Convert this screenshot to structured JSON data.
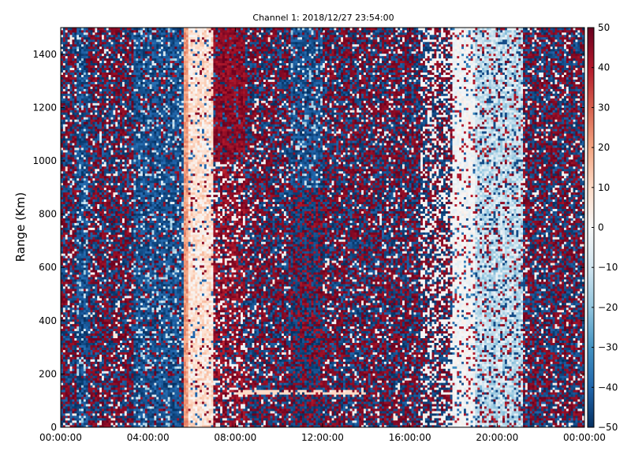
{
  "chart_data": {
    "type": "heatmap",
    "title": "Channel 1: 2018/12/27 23:54:00",
    "xlabel": "",
    "ylabel": "Range (Km)",
    "x_range": [
      "00:00:00",
      "24:00:00"
    ],
    "x_ticks": [
      "00:00:00",
      "04:00:00",
      "08:00:00",
      "12:00:00",
      "16:00:00",
      "20:00:00",
      "00:00:00"
    ],
    "ylim": [
      0,
      1500
    ],
    "y_ticks": [
      "0",
      "200",
      "400",
      "600",
      "800",
      "1000",
      "1200",
      "1400"
    ],
    "colorbar": {
      "range": [
        -50,
        50
      ],
      "ticks": [
        "50",
        "40",
        "30",
        "20",
        "10",
        "0",
        "−10",
        "−20",
        "−30",
        "−40",
        "−50"
      ],
      "colormap": "RdBu_r",
      "stops": [
        "#053061",
        "#2166ac",
        "#4393c3",
        "#92c5de",
        "#d1e5f0",
        "#f7f7f7",
        "#fddbc7",
        "#f4a582",
        "#d6604d",
        "#b2182b",
        "#67001f"
      ]
    },
    "time_bands": [
      {
        "start": "00:00",
        "end": "00:45",
        "pattern": "mixed-bimodal",
        "note": "speckled red/blue"
      },
      {
        "start": "00:45",
        "end": "01:15",
        "pattern": "mostly-negative",
        "note": "light blue streaks"
      },
      {
        "start": "01:15",
        "end": "03:20",
        "pattern": "mixed-bimodal"
      },
      {
        "start": "03:20",
        "end": "05:35",
        "pattern": "mostly-negative",
        "note": "dark blue"
      },
      {
        "start": "05:35",
        "end": "05:50",
        "pattern": "positive",
        "note": "light orange stripe ~+20"
      },
      {
        "start": "05:50",
        "end": "07:00",
        "pattern": "near-zero-positive",
        "note": "pale pink / white"
      },
      {
        "start": "07:00",
        "end": "08:30",
        "pattern": "mostly-positive",
        "note": "dark red, stronger above 1000 km"
      },
      {
        "start": "08:30",
        "end": "10:30",
        "pattern": "mixed-bimodal"
      },
      {
        "start": "10:30",
        "end": "12:00",
        "pattern": "mostly-negative",
        "note": "dark blue block above 900 km"
      },
      {
        "start": "12:00",
        "end": "16:30",
        "pattern": "mixed-bimodal"
      },
      {
        "start": "16:30",
        "end": "18:00",
        "pattern": "mixed-with-white"
      },
      {
        "start": "18:00",
        "end": "19:00",
        "pattern": "near-zero",
        "note": "white"
      },
      {
        "start": "19:00",
        "end": "21:10",
        "pattern": "near-zero-negative",
        "note": "light blue / white"
      },
      {
        "start": "21:10",
        "end": "21:50",
        "pattern": "mixed-bimodal"
      },
      {
        "start": "21:50",
        "end": "24:00",
        "pattern": "mixed-bimodal",
        "note": "red/blue speckle"
      }
    ],
    "features": [
      {
        "type": "horizontal-streak",
        "range_km": 135,
        "from": "08:00",
        "to": "14:00",
        "value_approx": 10
      }
    ]
  }
}
